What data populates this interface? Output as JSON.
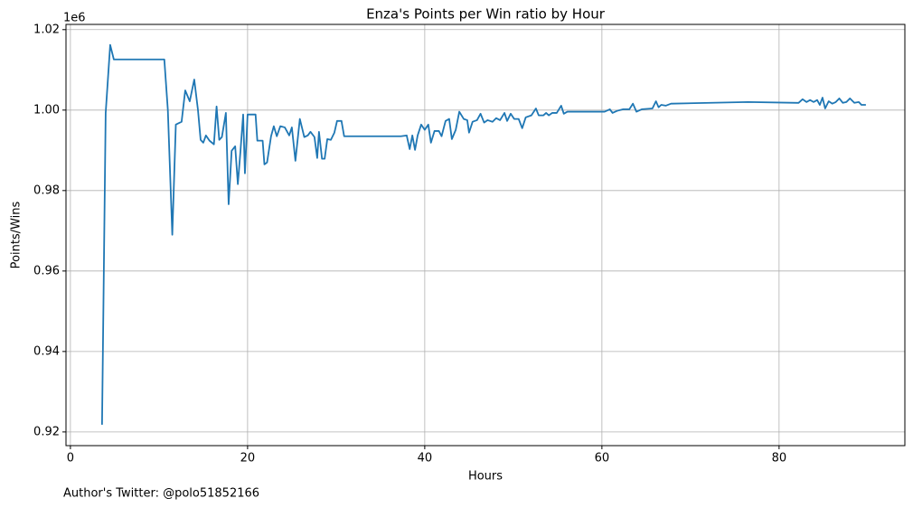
{
  "chart_data": {
    "type": "line",
    "title": "Enza's Points per Win ratio by Hour",
    "xlabel": "Hours",
    "ylabel": "Points/Wins",
    "y_offset_label": "1e6",
    "footnote": "Author's Twitter: @polo51852166",
    "color": "#1f77b4",
    "grid": true,
    "xlim": [
      -0.5,
      94.2
    ],
    "ylim": [
      0.9166,
      1.0213
    ],
    "xticks": [
      0,
      20,
      40,
      60,
      80
    ],
    "yticks": [
      0.92,
      0.94,
      0.96,
      0.98,
      {
        "value": 1,
        "label": "1.00"
      },
      1.02
    ],
    "x": [
      3.57,
      3.98,
      4.49,
      4.9,
      10.6,
      11.0,
      11.5,
      11.9,
      12.55,
      12.96,
      13.47,
      13.98,
      14.4,
      14.7,
      15.0,
      15.3,
      15.7,
      16.2,
      16.5,
      16.8,
      17.1,
      17.55,
      17.86,
      18.2,
      18.6,
      18.9,
      19.2,
      19.5,
      19.7,
      20.0,
      20.9,
      21.1,
      21.7,
      21.9,
      22.2,
      22.65,
      22.96,
      23.3,
      23.7,
      24.2,
      24.7,
      25.0,
      25.4,
      25.9,
      26.4,
      26.8,
      27.1,
      27.55,
      27.86,
      28.06,
      28.4,
      28.7,
      29.0,
      29.4,
      29.8,
      30.1,
      30.6,
      30.9,
      37.3,
      37.96,
      38.3,
      38.6,
      38.9,
      39.2,
      39.6,
      40.0,
      40.4,
      40.7,
      41.1,
      41.6,
      41.9,
      42.35,
      42.76,
      43.06,
      43.5,
      43.9,
      44.4,
      44.8,
      45.0,
      45.4,
      45.9,
      46.3,
      46.7,
      47.1,
      47.65,
      48.06,
      48.5,
      49.0,
      49.3,
      49.7,
      50.1,
      50.6,
      51.0,
      51.4,
      52.04,
      52.55,
      52.86,
      53.4,
      53.7,
      54.0,
      54.4,
      54.9,
      55.4,
      55.7,
      56.1,
      60.3,
      60.9,
      61.2,
      61.7,
      62.4,
      63.1,
      63.5,
      63.9,
      64.5,
      65.7,
      66.1,
      66.4,
      66.7,
      67.2,
      67.8,
      76.5,
      82.2,
      82.65,
      83.1,
      83.5,
      83.9,
      84.3,
      84.6,
      84.9,
      85.2,
      85.6,
      86.0,
      86.4,
      86.8,
      87.2,
      87.6,
      88.0,
      88.5,
      89.0,
      89.3,
      89.8
    ],
    "values": [
      0.9218,
      0.9993,
      1.0162,
      1.0126,
      1.0126,
      1.0,
      0.969,
      0.9964,
      0.9971,
      1.0049,
      1.0022,
      1.0076,
      1.0,
      0.9926,
      0.9919,
      0.9937,
      0.9924,
      0.9915,
      1.0009,
      0.9926,
      0.9933,
      0.9993,
      0.9766,
      0.9899,
      0.991,
      0.9816,
      0.9899,
      0.9989,
      0.9843,
      0.9989,
      0.9989,
      0.9924,
      0.9924,
      0.9865,
      0.987,
      0.9935,
      0.996,
      0.9935,
      0.996,
      0.9957,
      0.9937,
      0.9957,
      0.9874,
      0.9978,
      0.9933,
      0.9937,
      0.9946,
      0.9933,
      0.9881,
      0.9946,
      0.9879,
      0.9879,
      0.9928,
      0.9926,
      0.9944,
      0.9973,
      0.9973,
      0.9935,
      0.9935,
      0.9937,
      0.9903,
      0.9937,
      0.9901,
      0.9937,
      0.9964,
      0.9951,
      0.9964,
      0.9919,
      0.9948,
      0.9948,
      0.9935,
      0.9973,
      0.9978,
      0.9928,
      0.9951,
      0.9996,
      0.9978,
      0.9975,
      0.9944,
      0.9971,
      0.9975,
      0.9991,
      0.9969,
      0.9975,
      0.9971,
      0.998,
      0.9975,
      0.9993,
      0.9973,
      0.9991,
      0.9978,
      0.9978,
      0.9955,
      0.9982,
      0.9987,
      1.0004,
      0.9987,
      0.9987,
      0.9993,
      0.9987,
      0.9993,
      0.9993,
      1.0011,
      0.9991,
      0.9996,
      0.9996,
      1.0002,
      0.9993,
      0.9998,
      1.0002,
      1.0002,
      1.0016,
      0.9996,
      1.0002,
      1.0004,
      1.0022,
      1.0007,
      1.0013,
      1.0011,
      1.0016,
      1.002,
      1.0018,
      1.0027,
      1.002,
      1.0025,
      1.002,
      1.0025,
      1.0013,
      1.0031,
      1.0004,
      1.0022,
      1.0016,
      1.002,
      1.0029,
      1.0018,
      1.002,
      1.0029,
      1.0018,
      1.002,
      1.0013,
      1.0013
    ]
  }
}
